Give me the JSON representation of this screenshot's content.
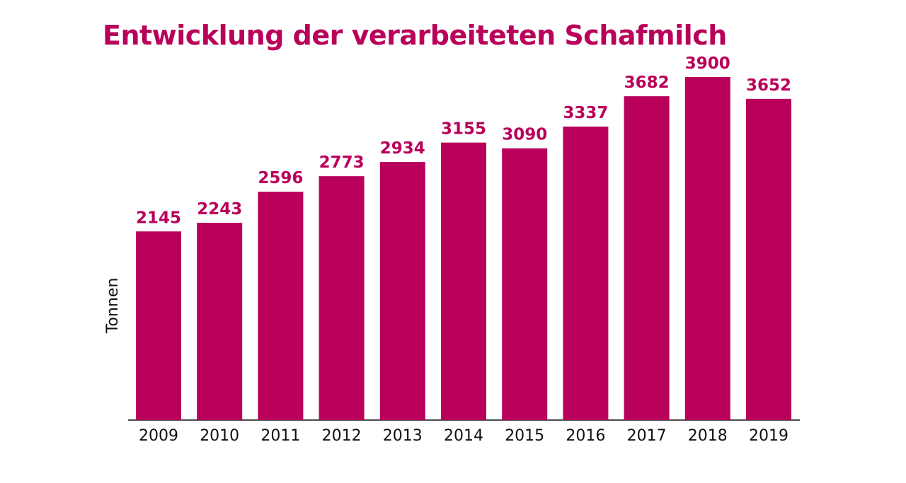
{
  "chart_data": {
    "type": "bar",
    "title": "Entwicklung der verarbeiteten Schafmilch",
    "ylabel": "Tonnen",
    "xlabel": "",
    "categories": [
      "2009",
      "2010",
      "2011",
      "2012",
      "2013",
      "2014",
      "2015",
      "2016",
      "2017",
      "2018",
      "2019"
    ],
    "values": [
      2145,
      2243,
      2596,
      2773,
      2934,
      3155,
      3090,
      3337,
      3682,
      3900,
      3652
    ],
    "ylim": [
      0,
      3900
    ],
    "grid": false,
    "legend": "none",
    "data_labels": true,
    "colors": {
      "bar": "#b9005a",
      "label": "#b9005a",
      "axis": "#111111",
      "text": "#111111"
    }
  }
}
